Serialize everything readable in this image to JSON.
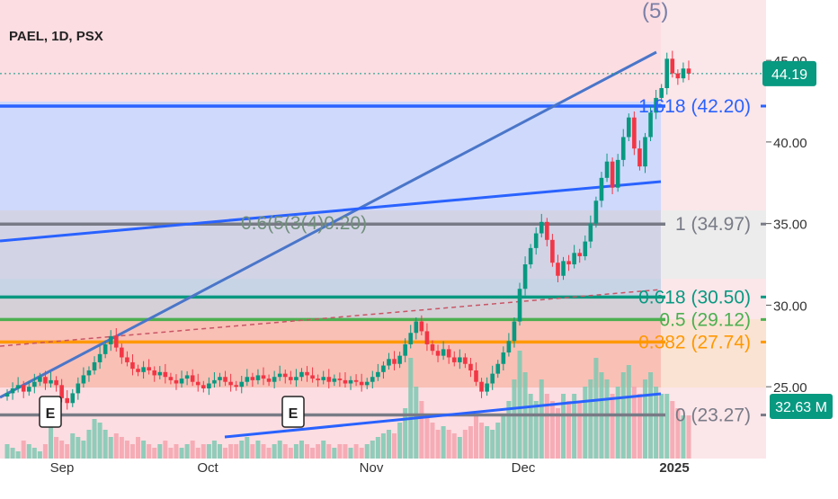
{
  "chart_data": {
    "type": "candlestick",
    "symbol_title": "PAEL, 1D, PSX",
    "wave_label": "(5)",
    "x_tick_labels": [
      "Sep",
      "Oct",
      "Nov",
      "Dec",
      "2025"
    ],
    "y_tick_labels": [
      "45.00",
      "40.00",
      "35.00",
      "30.00",
      "25.00"
    ],
    "y_ticks": [
      45,
      40,
      35,
      30,
      25
    ],
    "ylim": [
      20.6,
      48.7
    ],
    "last_price": "44.19",
    "last_price_value": 44.19,
    "volume_label": "32.63 M",
    "earnings_marker": "E",
    "fib_levels": [
      {
        "label": "1.618 (42.20)",
        "value": 42.2,
        "color": "#2962ff"
      },
      {
        "label": "1 (34.97)",
        "value": 34.97,
        "color": "#787b86"
      },
      {
        "label": "0.618 (30.50)",
        "value": 30.5,
        "color": "#089981"
      },
      {
        "label": "0.5 (29.12)",
        "value": 29.12,
        "color": "#4caf50"
      },
      {
        "label": "0.382 (27.74)",
        "value": 27.74,
        "color": "#ff9800"
      },
      {
        "label": "0 (23.27)",
        "value": 23.27,
        "color": "#787b86"
      }
    ],
    "overlap_label": "0.6(5(3(4)0.20)",
    "colors": {
      "up": "#089981",
      "down": "#f23645",
      "bg": "#fcd6dc",
      "blue": "#2962ff"
    },
    "closes": [
      24.6,
      24.9,
      25.1,
      24.7,
      25.0,
      25.3,
      25.6,
      25.2,
      25.4,
      25.1,
      24.3,
      24.0,
      24.6,
      25.2,
      25.7,
      26.0,
      26.5,
      27.0,
      27.6,
      28.1,
      27.4,
      26.8,
      26.5,
      26.1,
      25.9,
      26.2,
      26.0,
      25.7,
      25.9,
      25.6,
      25.4,
      25.2,
      25.5,
      25.7,
      25.3,
      25.1,
      24.9,
      25.2,
      25.4,
      25.6,
      25.3,
      25.1,
      25.0,
      25.3,
      25.6,
      25.4,
      25.7,
      25.5,
      25.3,
      25.6,
      25.8,
      25.6,
      25.4,
      25.6,
      25.9,
      25.7,
      25.5,
      25.4,
      25.6,
      25.3,
      25.5,
      25.4,
      25.2,
      25.4,
      25.3,
      25.1,
      25.3,
      25.6,
      25.9,
      26.3,
      26.7,
      26.4,
      26.9,
      27.6,
      28.3,
      29.0,
      28.4,
      27.6,
      27.2,
      26.9,
      27.3,
      26.8,
      26.5,
      26.8,
      26.4,
      26.0,
      25.3,
      24.7,
      25.2,
      25.8,
      26.4,
      27.1,
      27.8,
      29.0,
      31.0,
      32.5,
      33.5,
      34.4,
      35.1,
      34.0,
      32.6,
      31.8,
      32.7,
      32.5,
      33.2,
      33.0,
      33.9,
      35.0,
      36.4,
      37.8,
      38.8,
      37.2,
      38.9,
      40.3,
      41.5,
      39.6,
      38.5,
      40.3,
      41.8,
      42.7,
      43.3,
      45.1,
      44.2,
      43.9,
      44.5,
      44.19
    ],
    "volume": [
      0.2,
      0.15,
      0.1,
      0.25,
      0.2,
      0.15,
      0.1,
      0.2,
      0.45,
      0.3,
      0.25,
      0.2,
      0.35,
      0.3,
      0.25,
      0.4,
      0.55,
      0.5,
      0.4,
      0.3,
      0.35,
      0.3,
      0.25,
      0.2,
      0.3,
      0.25,
      0.2,
      0.15,
      0.2,
      0.25,
      0.15,
      0.2,
      0.15,
      0.2,
      0.25,
      0.15,
      0.2,
      0.2,
      0.25,
      0.2,
      0.15,
      0.2,
      0.2,
      0.25,
      0.3,
      0.2,
      0.25,
      0.2,
      0.15,
      0.2,
      0.25,
      0.2,
      0.15,
      0.2,
      0.25,
      0.2,
      0.15,
      0.2,
      0.25,
      0.2,
      0.15,
      0.2,
      0.2,
      0.15,
      0.2,
      0.15,
      0.2,
      0.25,
      0.3,
      0.35,
      0.4,
      0.35,
      0.5,
      0.7,
      1.4,
      1.0,
      0.8,
      0.6,
      0.5,
      0.4,
      0.45,
      0.4,
      0.35,
      0.3,
      0.4,
      0.45,
      0.6,
      0.5,
      0.45,
      0.4,
      0.5,
      0.6,
      0.8,
      1.1,
      1.5,
      1.2,
      0.9,
      0.8,
      1.1,
      0.9,
      0.8,
      0.7,
      0.9,
      0.8,
      0.9,
      0.8,
      1.0,
      1.1,
      1.4,
      1.2,
      1.1,
      0.9,
      1.0,
      1.2,
      1.3,
      1.0,
      0.9,
      1.1,
      1.2,
      1.0,
      0.9,
      0.9,
      0.8,
      0.7,
      0.6,
      0.6
    ]
  }
}
